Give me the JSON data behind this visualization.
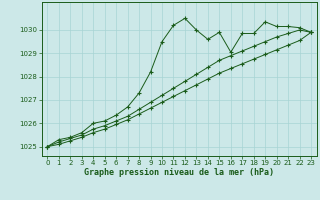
{
  "title": "Graphe pression niveau de la mer (hPa)",
  "bg_color": "#cce8e8",
  "grid_color": "#a8d4d4",
  "line_color": "#1a5c1a",
  "xlim": [
    -0.5,
    23.5
  ],
  "ylim": [
    1024.6,
    1031.2
  ],
  "yticks": [
    1025,
    1026,
    1027,
    1028,
    1029,
    1030
  ],
  "xticks": [
    0,
    1,
    2,
    3,
    4,
    5,
    6,
    7,
    8,
    9,
    10,
    11,
    12,
    13,
    14,
    15,
    16,
    17,
    18,
    19,
    20,
    21,
    22,
    23
  ],
  "series1_y": [
    1025.0,
    1025.3,
    1025.4,
    1025.6,
    1026.0,
    1026.1,
    1026.35,
    1026.7,
    1027.3,
    1028.2,
    1029.5,
    1030.2,
    1030.5,
    1030.0,
    1029.6,
    1029.9,
    1029.05,
    1029.85,
    1029.85,
    1030.35,
    1030.15,
    1030.15,
    1030.1,
    1029.9
  ],
  "series2_y": [
    1025.0,
    1025.2,
    1025.35,
    1025.5,
    1025.75,
    1025.9,
    1026.1,
    1026.3,
    1026.6,
    1026.9,
    1027.2,
    1027.5,
    1027.8,
    1028.1,
    1028.4,
    1028.7,
    1028.9,
    1029.1,
    1029.3,
    1029.5,
    1029.7,
    1029.85,
    1030.0,
    1029.9
  ],
  "series3_y": [
    1025.0,
    1025.1,
    1025.25,
    1025.4,
    1025.6,
    1025.75,
    1025.95,
    1026.15,
    1026.4,
    1026.65,
    1026.9,
    1027.15,
    1027.4,
    1027.65,
    1027.9,
    1028.15,
    1028.35,
    1028.55,
    1028.75,
    1028.95,
    1029.15,
    1029.35,
    1029.55,
    1029.9
  ]
}
